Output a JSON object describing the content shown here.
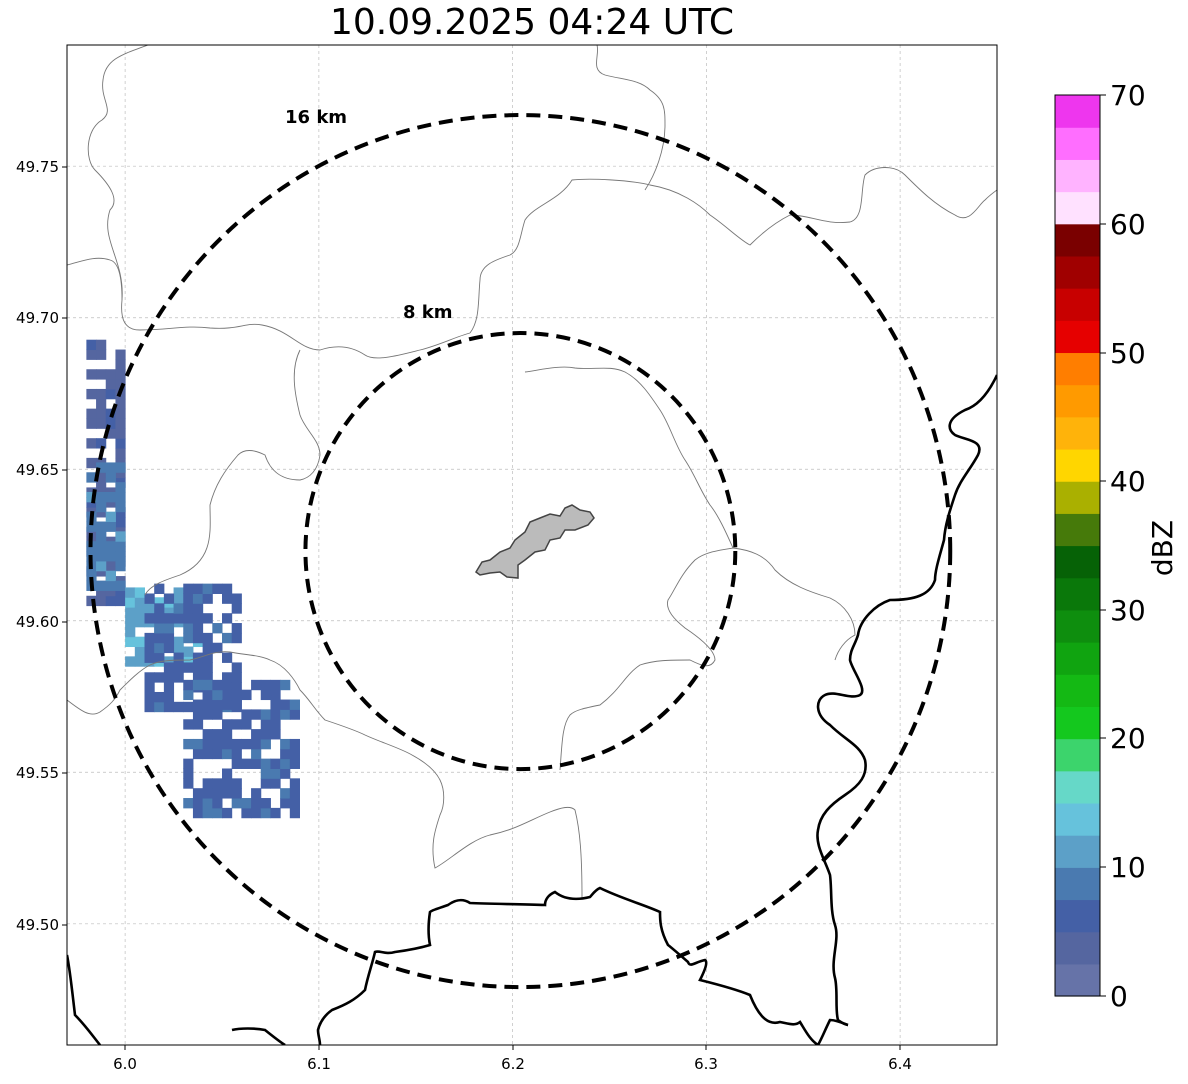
{
  "title": "10.09.2025 04:24 UTC",
  "map": {
    "lon_range": [
      5.97,
      6.45
    ],
    "lat_range": [
      49.46,
      49.79
    ],
    "x_ticks": [
      {
        "value": 6.0,
        "label": "6.0"
      },
      {
        "value": 6.1,
        "label": "6.1"
      },
      {
        "value": 6.2,
        "label": "6.2"
      },
      {
        "value": 6.3,
        "label": "6.3"
      },
      {
        "value": 6.4,
        "label": "6.4"
      }
    ],
    "y_ticks": [
      {
        "value": 49.5,
        "label": "49.50"
      },
      {
        "value": 49.55,
        "label": "49.55"
      },
      {
        "value": 49.6,
        "label": "49.60"
      },
      {
        "value": 49.65,
        "label": "49.65"
      },
      {
        "value": 49.7,
        "label": "49.70"
      },
      {
        "value": 49.75,
        "label": "49.75"
      }
    ],
    "grid": true,
    "rings": [
      {
        "radius_km": 8,
        "label": "8 km"
      },
      {
        "radius_km": 16,
        "label": "16 km"
      }
    ],
    "center": {
      "lon": 6.204,
      "lat": 49.623
    }
  },
  "colorbar": {
    "label": "dBZ",
    "min": 0,
    "max": 70,
    "ticks": [
      {
        "value": 0,
        "label": "0"
      },
      {
        "value": 10,
        "label": "10"
      },
      {
        "value": 20,
        "label": "20"
      },
      {
        "value": 30,
        "label": "30"
      },
      {
        "value": 40,
        "label": "40"
      },
      {
        "value": 50,
        "label": "50"
      },
      {
        "value": 60,
        "label": "60"
      },
      {
        "value": 70,
        "label": "70"
      }
    ],
    "colors": [
      "#6673a8",
      "#5566a0",
      "#4460a6",
      "#4a7ab0",
      "#5ca0c8",
      "#66c2dc",
      "#66d8c8",
      "#3cd46c",
      "#14c81e",
      "#14b914",
      "#10a410",
      "#0e8e0e",
      "#0a780a",
      "#066206",
      "#467a0a",
      "#aab000",
      "#ffd600",
      "#ffb30a",
      "#ff9a00",
      "#ff7e00",
      "#e60000",
      "#c80000",
      "#a00000",
      "#7a0000",
      "#ffe1ff",
      "#ffb3ff",
      "#ff6eff",
      "#ee36ee"
    ]
  },
  "radar_cells": [
    {
      "lon_range": [
        5.98,
        6.0
      ],
      "lat_range": [
        49.605,
        49.69
      ],
      "dbz": 3
    },
    {
      "lon_range": [
        5.98,
        6.0
      ],
      "lat_range": [
        49.61,
        49.65
      ],
      "dbz": 8
    },
    {
      "lon_range": [
        6.0,
        6.04
      ],
      "lat_range": [
        49.585,
        49.61
      ],
      "dbz": 11
    },
    {
      "lon_range": [
        6.01,
        6.06
      ],
      "lat_range": [
        49.57,
        49.61
      ],
      "dbz": 5
    },
    {
      "lon_range": [
        6.03,
        6.09
      ],
      "lat_range": [
        49.535,
        49.58
      ],
      "dbz": 5
    }
  ]
}
